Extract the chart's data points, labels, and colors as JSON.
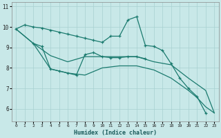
{
  "bg_color": "#c8e8e8",
  "grid_color": "#a8d0d0",
  "line_color": "#1a7a6e",
  "xlabel": "Humidex (Indice chaleur)",
  "x_ticks": [
    0,
    1,
    2,
    3,
    4,
    5,
    6,
    7,
    8,
    9,
    10,
    11,
    12,
    13,
    14,
    15,
    16,
    17,
    18,
    19,
    20,
    21,
    22,
    23
  ],
  "y_ticks": [
    6,
    7,
    8,
    9,
    10,
    11
  ],
  "xlim": [
    -0.5,
    23.5
  ],
  "ylim": [
    5.4,
    11.2
  ],
  "line_top": {
    "x": [
      0,
      1,
      2,
      3,
      4,
      5,
      6,
      7,
      8,
      9,
      10,
      11,
      12,
      13,
      14,
      15,
      16,
      17,
      18,
      19,
      20,
      21,
      22
    ],
    "y": [
      9.9,
      10.1,
      10.0,
      9.95,
      9.85,
      9.75,
      9.65,
      9.55,
      9.45,
      9.35,
      9.25,
      9.55,
      9.55,
      10.35,
      10.5,
      9.1,
      9.05,
      8.85,
      8.2,
      7.5,
      7.0,
      6.6,
      5.8
    ]
  },
  "line_mid_marked": {
    "x": [
      2,
      3,
      4,
      5,
      6,
      7,
      8,
      9,
      10,
      11,
      12,
      13,
      14,
      15
    ],
    "y": [
      9.2,
      9.05,
      7.95,
      7.85,
      7.75,
      7.65,
      8.65,
      8.75,
      8.55,
      8.5,
      8.5,
      8.55,
      8.55,
      8.45
    ]
  },
  "line_upper_diag": {
    "x": [
      0,
      2,
      4,
      6,
      8,
      10,
      12,
      14,
      16,
      18,
      20,
      22,
      23
    ],
    "y": [
      9.9,
      9.2,
      8.6,
      8.3,
      8.55,
      8.55,
      8.55,
      8.55,
      8.3,
      8.15,
      7.5,
      6.9,
      5.8
    ]
  },
  "line_lower_diag": {
    "x": [
      0,
      2,
      4,
      6,
      8,
      10,
      12,
      14,
      16,
      18,
      20,
      21,
      22,
      23
    ],
    "y": [
      9.9,
      9.2,
      7.95,
      7.75,
      7.65,
      8.0,
      8.1,
      8.1,
      7.9,
      7.5,
      6.9,
      6.55,
      6.1,
      5.8
    ]
  }
}
